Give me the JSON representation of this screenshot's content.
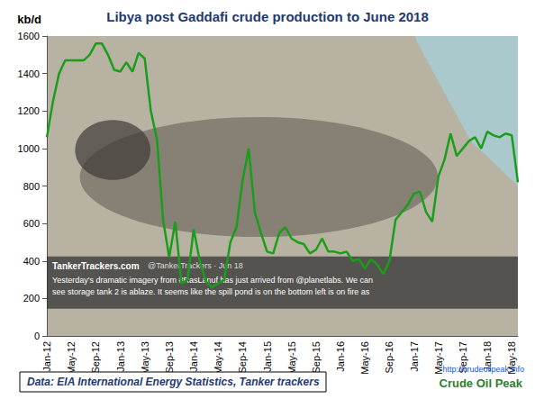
{
  "chart_data": {
    "type": "line",
    "title": "Libya post Gaddafi crude production to June 2018",
    "y_label": "kb/d",
    "categories": [
      "Jan-12",
      null,
      null,
      null,
      "May-12",
      null,
      null,
      null,
      "Sep-12",
      null,
      null,
      null,
      "Jan-13",
      null,
      null,
      null,
      "May-13",
      null,
      null,
      null,
      "Sep-13",
      null,
      null,
      null,
      "Jan-14",
      null,
      null,
      null,
      "May-14",
      null,
      null,
      null,
      "Sep-14",
      null,
      null,
      null,
      "Jan-15",
      null,
      null,
      null,
      "May-15",
      null,
      null,
      null,
      "Sep-15",
      null,
      null,
      null,
      "Jan-16",
      null,
      null,
      null,
      "May-16",
      null,
      null,
      null,
      "Sep-16",
      null,
      null,
      null,
      "Jan-17",
      null,
      null,
      null,
      "May-17",
      null,
      null,
      null,
      "Sep-17",
      null,
      null,
      null,
      "Jan-18",
      null,
      null,
      null,
      "May-18",
      null
    ],
    "values": [
      1060,
      1250,
      1400,
      1470,
      1470,
      1470,
      1470,
      1500,
      1560,
      1560,
      1500,
      1420,
      1410,
      1460,
      1410,
      1510,
      1480,
      1200,
      1050,
      620,
      420,
      610,
      280,
      300,
      570,
      400,
      290,
      260,
      280,
      300,
      500,
      580,
      830,
      1000,
      660,
      550,
      450,
      440,
      550,
      580,
      520,
      500,
      490,
      440,
      460,
      520,
      450,
      450,
      440,
      450,
      400,
      410,
      360,
      410,
      380,
      330,
      400,
      620,
      660,
      700,
      760,
      770,
      660,
      610,
      850,
      940,
      1080,
      960,
      1000,
      1040,
      1060,
      1000,
      1090,
      1070,
      1060,
      1080,
      1070,
      820
    ],
    "color": "#1a9e1a",
    "ylim": [
      0,
      1600
    ],
    "yticks": [
      0,
      200,
      400,
      600,
      800,
      1000,
      1200,
      1400,
      1600
    ],
    "grid": false,
    "source": "Data: EIA International Energy Statistics, Tanker trackers",
    "url": "http://crudeoilpeak.info",
    "logo": "Crude Oil Peak",
    "image_caption": {
      "author": "TankerTrackers.com",
      "handle": "@TankerTrackers · Jun 18",
      "text": [
        "Yesterday's dramatic imagery from #RasLanuf has just arrived from @planetlabs. We can",
        "see storage tank 2 is ablaze. It seems like the spill pond is on the bottom left is on fire as"
      ]
    }
  }
}
